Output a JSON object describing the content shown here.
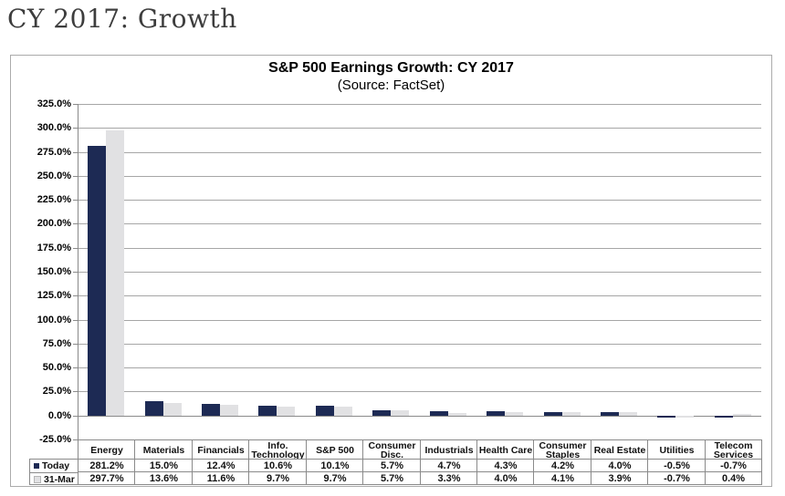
{
  "page": {
    "title": "CY 2017: Growth"
  },
  "colors": {
    "today_bar": "#1d2a54",
    "mar31_bar": "#e1e1e3",
    "mar31_swatch_border": "#b5b5b5",
    "gridline": "#a6a6a6",
    "axis": "#8a8a8a",
    "chart_border": "#ababab",
    "page_title_text": "#3d3d3d"
  },
  "chart_data": {
    "type": "bar",
    "title": "S&P 500 Earnings Growth: CY 2017",
    "subtitle": "(Source: FactSet)",
    "categories": [
      "Energy",
      "Materials",
      "Financials",
      "Info. Technology",
      "S&P 500",
      "Consumer Disc.",
      "Industrials",
      "Health Care",
      "Consumer Staples",
      "Real Estate",
      "Utilities",
      "Telecom Services"
    ],
    "series": [
      {
        "name": "Today",
        "color": "#1d2a54",
        "values": [
          281.2,
          15.0,
          12.4,
          10.6,
          10.1,
          5.7,
          4.7,
          4.3,
          4.2,
          4.0,
          -0.5,
          -0.7
        ]
      },
      {
        "name": "31-Mar",
        "color": "#e1e1e3",
        "values": [
          297.7,
          13.6,
          11.6,
          9.7,
          9.7,
          5.7,
          3.3,
          4.0,
          4.1,
          3.9,
          -0.7,
          0.4
        ]
      }
    ],
    "ylim": [
      -25,
      325
    ],
    "ytick_step": 25,
    "ytick_format": "percent1",
    "value_format": "percent1",
    "grid": true,
    "legend_position": "table-left",
    "data_table": true
  }
}
